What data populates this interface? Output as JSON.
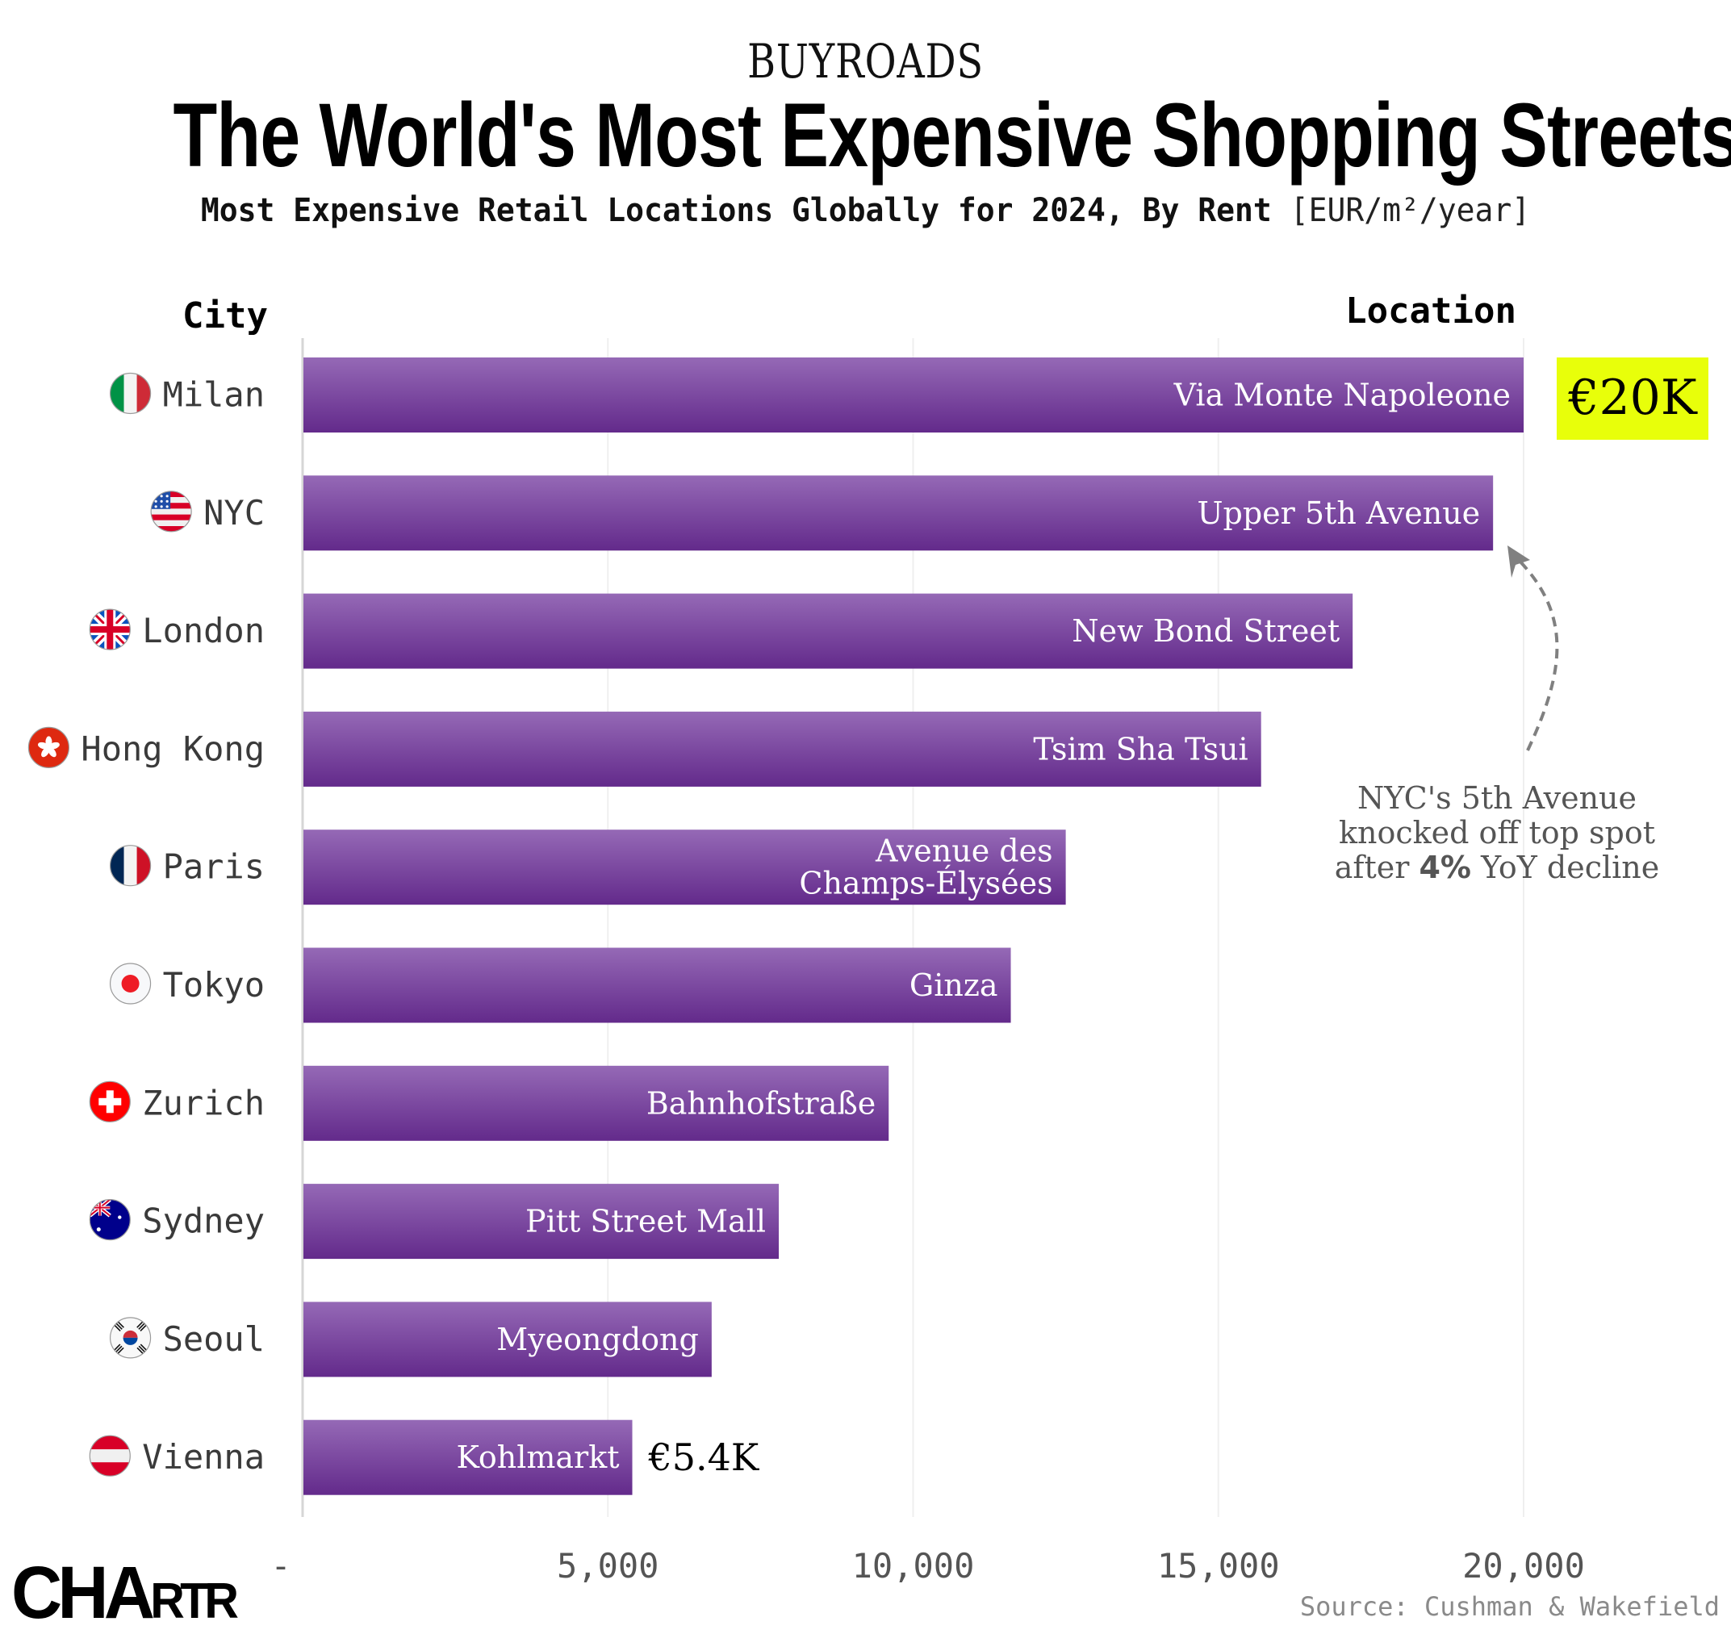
{
  "header": {
    "brand": "BUYROADS",
    "title": "The World's Most Expensive Shopping Streets",
    "subtitle_bold": "Most Expensive Retail Locations Globally for 2024, By Rent",
    "subtitle_unit": "[EUR/m²/year]"
  },
  "columns": {
    "city": "City",
    "location": "Location"
  },
  "chart_data": {
    "type": "bar",
    "orientation": "horizontal",
    "title": "The World's Most Expensive Shopping Streets",
    "subtitle": "Most Expensive Retail Locations Globally for 2024, By Rent [EUR/m²/year]",
    "xlabel": "",
    "ylabel": "City",
    "xlim": [
      0,
      22000
    ],
    "x_ticks": [
      0,
      5000,
      10000,
      15000,
      20000
    ],
    "x_tick_labels": [
      "-",
      "5,000",
      "10,000",
      "15,000",
      "20,000"
    ],
    "grid": "vertical",
    "categories": [
      "Milan",
      "NYC",
      "London",
      "Hong Kong",
      "Paris",
      "Tokyo",
      "Zurich",
      "Sydney",
      "Seoul",
      "Vienna"
    ],
    "locations": [
      "Via Monte Napoleone",
      "Upper 5th Avenue",
      "New Bond Street",
      "Tsim Sha Tsui",
      "Avenue des|Champs-Élysées",
      "Ginza",
      "Bahnhofstraße",
      "Pitt Street Mall",
      "Myeongdong",
      "Kohlmarkt"
    ],
    "flags": [
      "flag-italy-icon",
      "flag-usa-icon",
      "flag-uk-icon",
      "flag-hong-kong-icon",
      "flag-france-icon",
      "flag-japan-icon",
      "flag-switzerland-icon",
      "flag-australia-icon",
      "flag-south-korea-icon",
      "flag-austria-icon"
    ],
    "values": [
      20000,
      19500,
      17200,
      15700,
      12500,
      11600,
      9600,
      7800,
      6700,
      5400
    ],
    "value_labels": {
      "top": "€20K",
      "bottom": "€5.4K"
    },
    "annotation": {
      "lines": [
        "NYC's 5th Avenue",
        "knocked off top spot",
        "after |4%| YoY decline"
      ],
      "target": "NYC"
    }
  },
  "colors": {
    "bar_top": "#9569b6",
    "bar_bottom": "#632a8b",
    "highlight": "#e8ff0a",
    "grid": "#efefef",
    "axis": "#d6d6d6"
  },
  "footer": {
    "source": "Source: Cushman & Wakefield",
    "logo": "CHARTR"
  }
}
